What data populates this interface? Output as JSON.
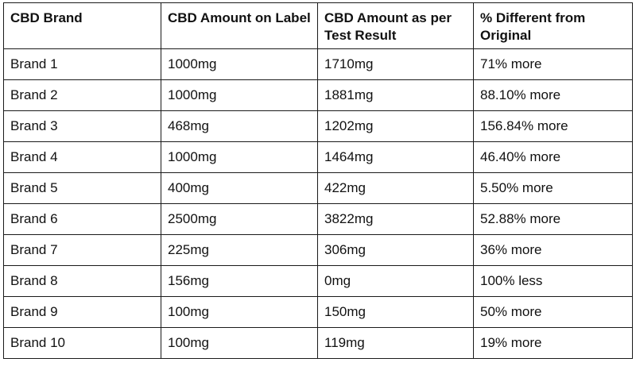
{
  "table": {
    "headers": [
      "CBD Brand",
      "CBD Amount on Label",
      "CBD Amount as per Test Result",
      "% Different from Original"
    ],
    "rows": [
      [
        "Brand 1",
        "1000mg",
        "1710mg",
        "71% more"
      ],
      [
        "Brand 2",
        "1000mg",
        "1881mg",
        "88.10% more"
      ],
      [
        "Brand 3",
        "468mg",
        "1202mg",
        "156.84% more"
      ],
      [
        "Brand 4",
        "1000mg",
        "1464mg",
        "46.40% more"
      ],
      [
        "Brand 5",
        "400mg",
        "422mg",
        "5.50% more"
      ],
      [
        "Brand 6",
        "2500mg",
        "3822mg",
        "52.88% more"
      ],
      [
        "Brand 7",
        "225mg",
        "306mg",
        "36% more"
      ],
      [
        "Brand 8",
        "156mg",
        "0mg",
        "100% less"
      ],
      [
        "Brand 9",
        "100mg",
        "150mg",
        "50% more"
      ],
      [
        "Brand 10",
        "100mg",
        "119mg",
        "19% more"
      ]
    ]
  }
}
